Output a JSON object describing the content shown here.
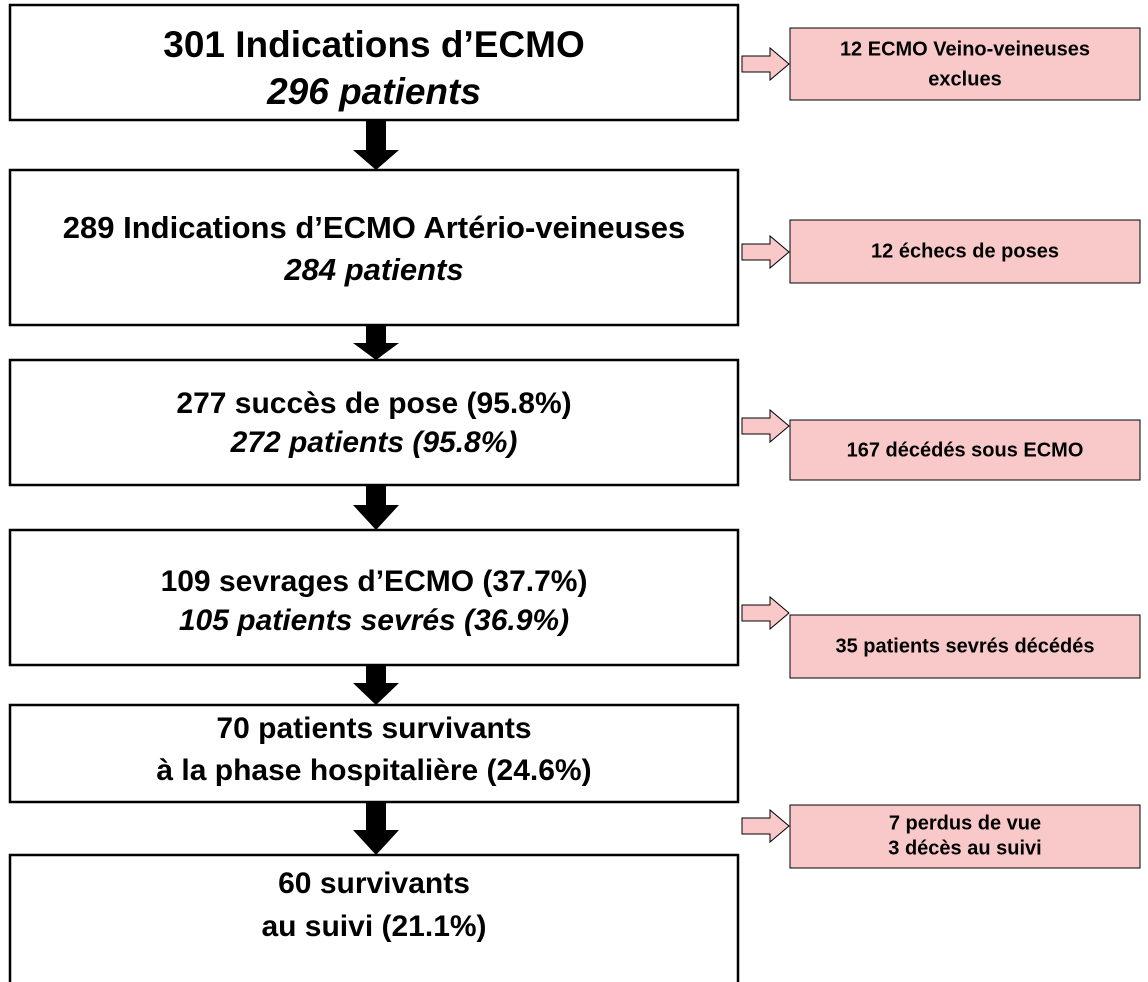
{
  "steps": [
    {
      "lines": [
        "301 Indications d’ECMO",
        "296 patients"
      ]
    },
    {
      "lines": [
        "289 Indications d’ECMO Artério-veineuses",
        "284 patients"
      ]
    },
    {
      "lines": [
        "277 succès de pose (95.8%)",
        "272 patients (95.8%)"
      ]
    },
    {
      "lines": [
        "109 sevrages d’ECMO (37.7%)",
        "105 patients sevrés (36.9%)"
      ]
    },
    {
      "lines": [
        "70 patients survivants",
        "à la phase hospitalière (24.6%)"
      ]
    },
    {
      "lines": [
        "60 survivants",
        "au suivi (21.1%)"
      ]
    }
  ],
  "exclusions": [
    {
      "lines": [
        "12 ECMO Veino-veineuses",
        "exclues"
      ]
    },
    {
      "lines": [
        "12 échecs de poses"
      ]
    },
    {
      "lines": [
        "167 décédés sous ECMO"
      ]
    },
    {
      "lines": [
        "35 patients sevrés décédés"
      ]
    },
    {
      "lines": [
        "7 perdus de vue",
        "3 décès au suivi"
      ]
    }
  ]
}
